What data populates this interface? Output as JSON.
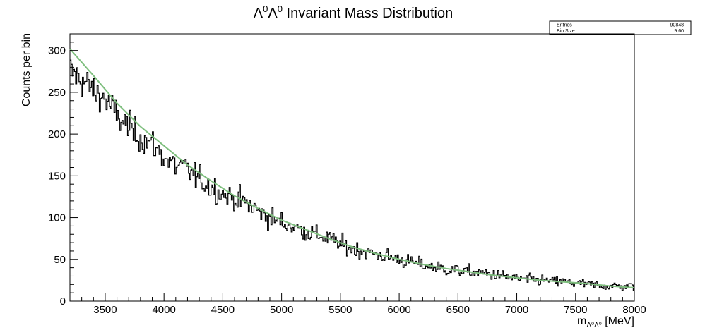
{
  "chart_data": {
    "type": "line",
    "title": {
      "lambda_char": "Λ",
      "superscript": "0",
      "rest": " Invariant Mass Distribution"
    },
    "xlabel": {
      "m": "m",
      "subscript": "Λ⁰Λ⁰",
      "unit": " [MeV]"
    },
    "ylabel": "Counts per bin",
    "xlim": [
      3200,
      8000
    ],
    "ylim": [
      0,
      320
    ],
    "x_ticks": [
      3500,
      4000,
      4500,
      5000,
      5500,
      6000,
      6500,
      7000,
      7500,
      8000
    ],
    "y_ticks": [
      0,
      50,
      100,
      150,
      200,
      250,
      300
    ],
    "stats_box": {
      "rows": [
        {
          "label": "Entries",
          "value": "90848"
        },
        {
          "label": "Bin Size",
          "value": "9.60"
        }
      ]
    },
    "series": [
      {
        "style": "histogram",
        "color": "#000000",
        "bin_width": 9.6,
        "x_start": 3200,
        "x_end": 8000,
        "keypoints": [
          [
            3200,
            275
          ],
          [
            3300,
            265
          ],
          [
            3400,
            252
          ],
          [
            3500,
            242
          ],
          [
            3600,
            222
          ],
          [
            3700,
            208
          ],
          [
            3800,
            196
          ],
          [
            3900,
            188
          ],
          [
            4000,
            172
          ],
          [
            4100,
            162
          ],
          [
            4200,
            158
          ],
          [
            4300,
            145
          ],
          [
            4400,
            137
          ],
          [
            4500,
            128
          ],
          [
            4600,
            123
          ],
          [
            4700,
            117
          ],
          [
            4800,
            108
          ],
          [
            4900,
            100
          ],
          [
            5000,
            94
          ],
          [
            5200,
            84
          ],
          [
            5400,
            75
          ],
          [
            5500,
            68
          ],
          [
            5600,
            63
          ],
          [
            5800,
            56
          ],
          [
            6000,
            50
          ],
          [
            6200,
            43
          ],
          [
            6400,
            38
          ],
          [
            6600,
            35
          ],
          [
            6800,
            32
          ],
          [
            7000,
            27
          ],
          [
            7200,
            25
          ],
          [
            7400,
            23
          ],
          [
            7600,
            20
          ],
          [
            7800,
            18
          ],
          [
            8000,
            18
          ]
        ]
      },
      {
        "style": "fit",
        "color": "#7fbf7f",
        "points": [
          [
            3200,
            302
          ],
          [
            3400,
            270
          ],
          [
            3600,
            237
          ],
          [
            3800,
            209
          ],
          [
            4000,
            186
          ],
          [
            4200,
            163
          ],
          [
            4400,
            144
          ],
          [
            4600,
            126
          ],
          [
            4800,
            111
          ],
          [
            5000,
            97
          ],
          [
            5200,
            86
          ],
          [
            5400,
            75
          ],
          [
            5600,
            65
          ],
          [
            5800,
            57
          ],
          [
            6000,
            50
          ],
          [
            6200,
            44
          ],
          [
            6400,
            39
          ],
          [
            6600,
            35
          ],
          [
            6800,
            31
          ],
          [
            7000,
            28
          ],
          [
            7200,
            25
          ],
          [
            7400,
            23
          ],
          [
            7600,
            21
          ],
          [
            7800,
            18
          ],
          [
            8000,
            16
          ]
        ]
      }
    ]
  }
}
